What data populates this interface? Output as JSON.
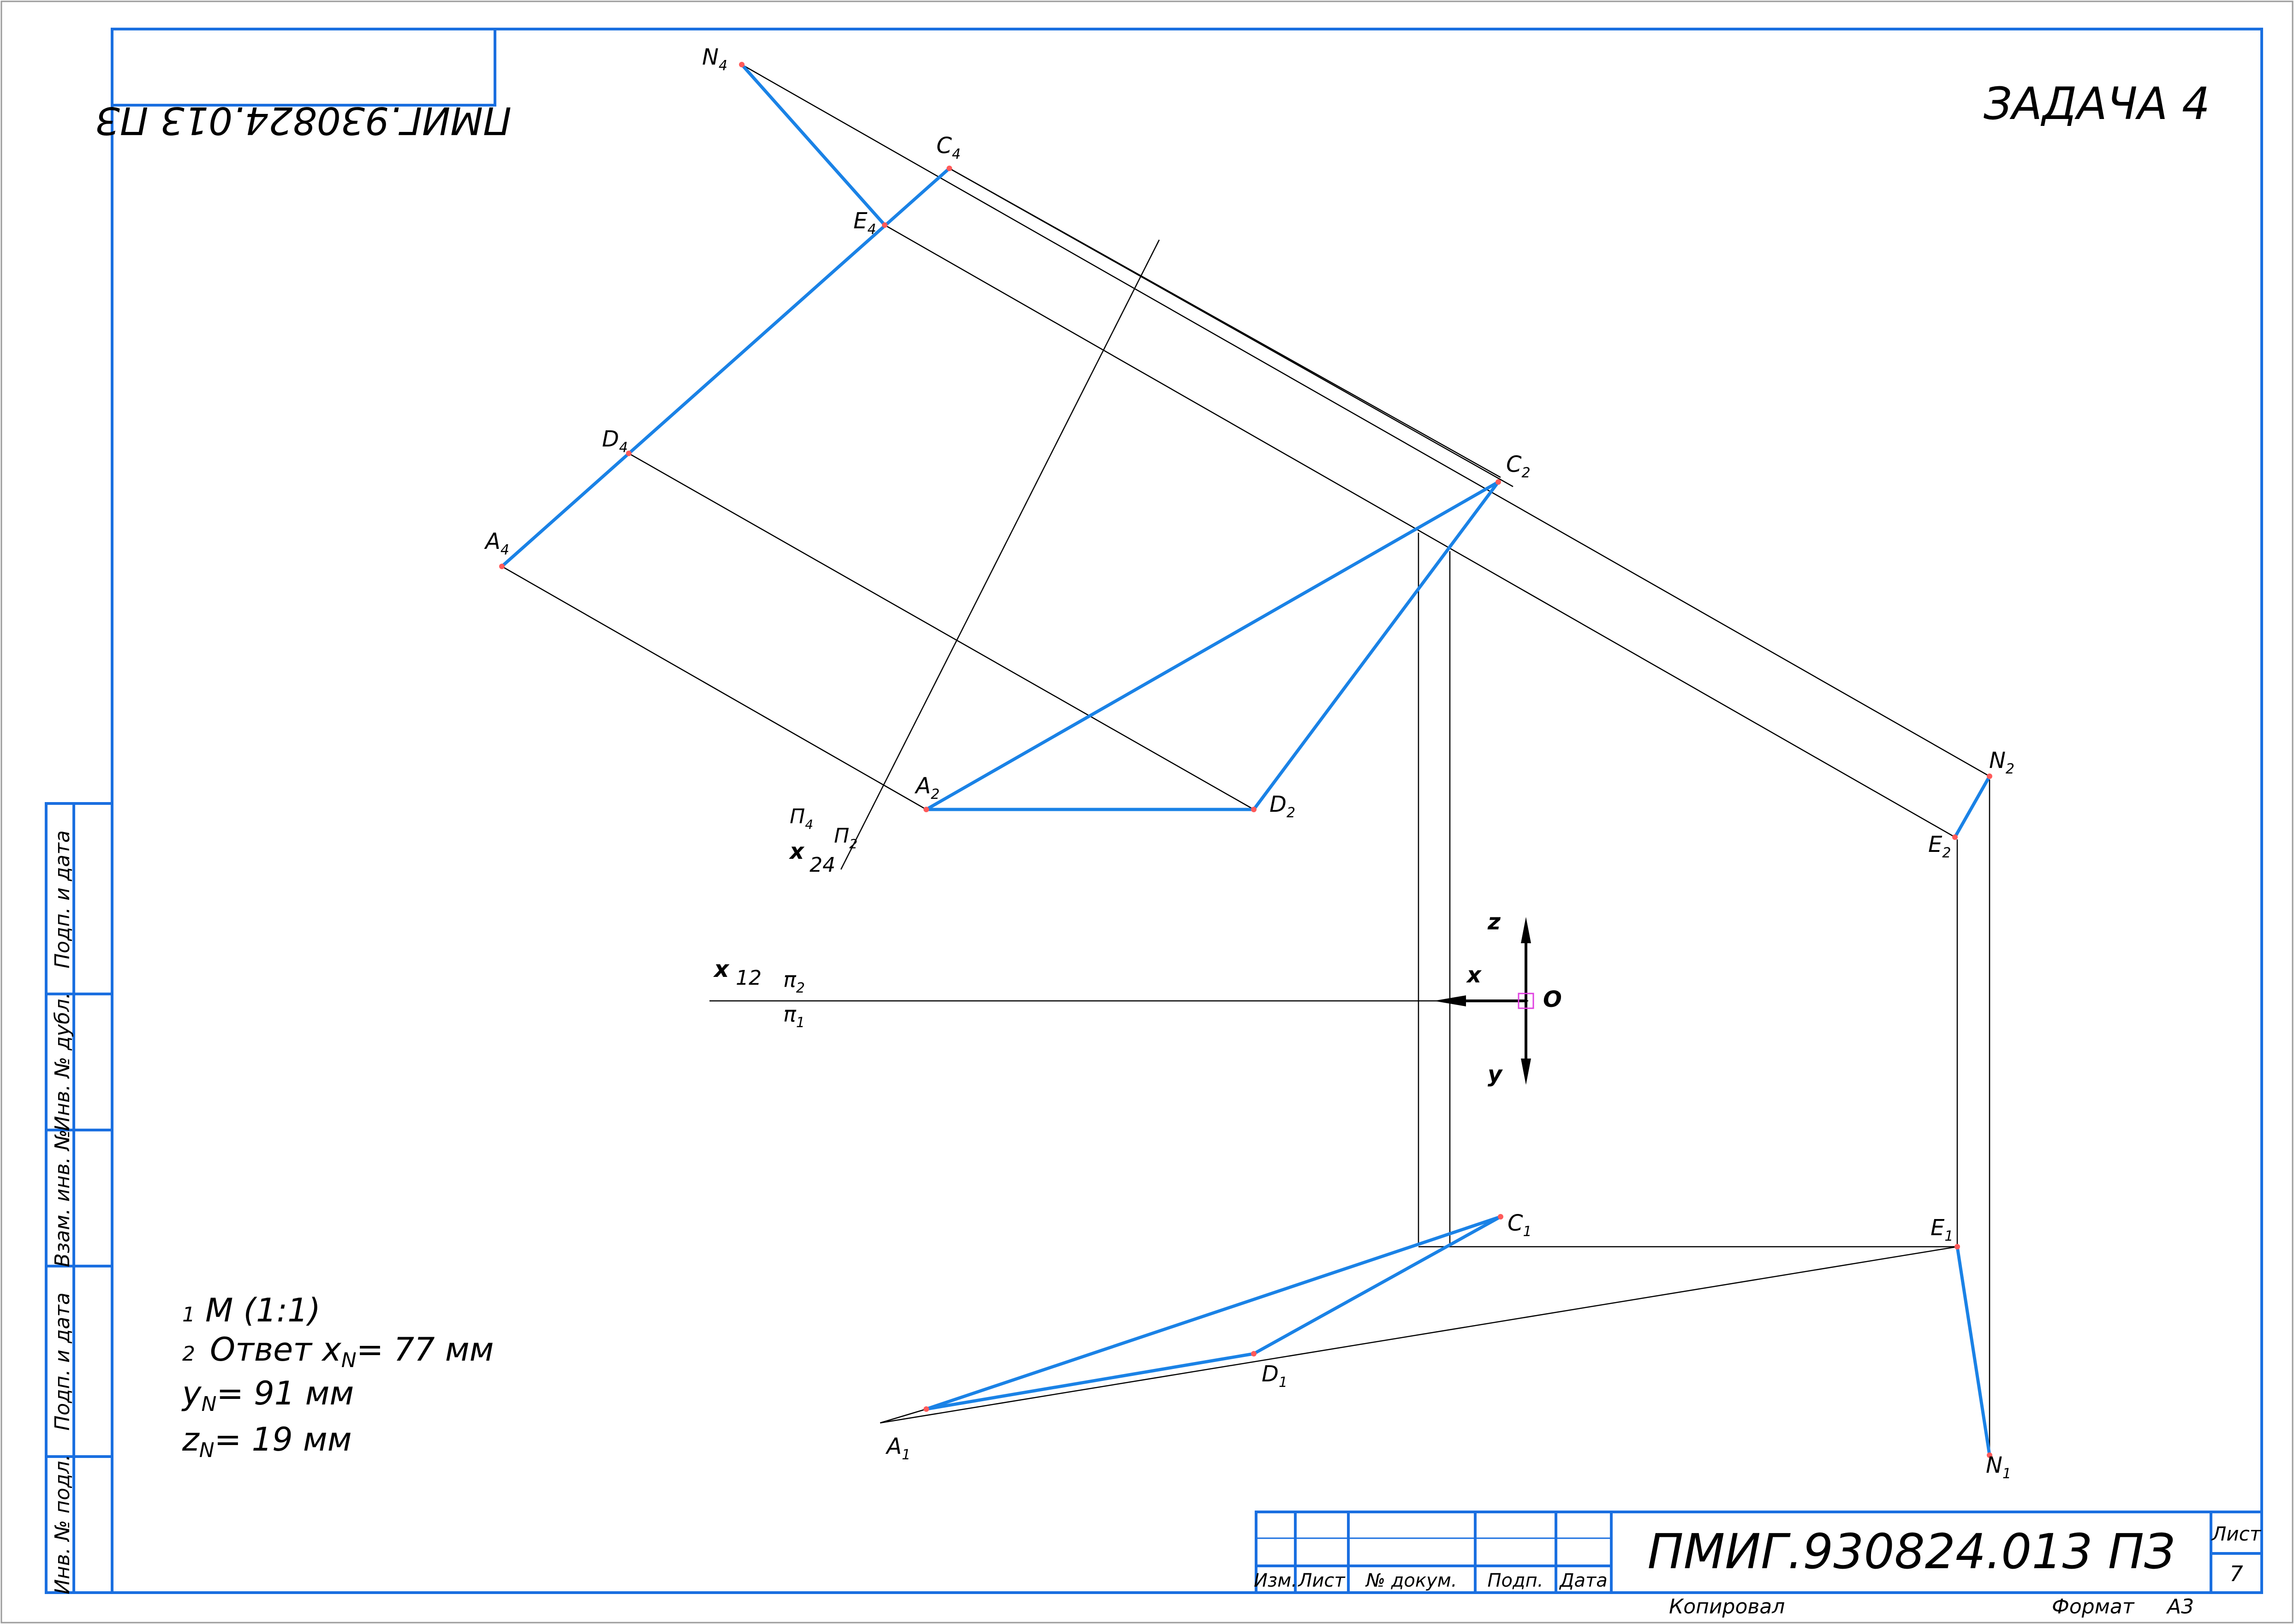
{
  "sheet": {
    "stamp_mirrored": "ПМИГ.930824.013 ПЗ",
    "task_title": "ЗАДАЧА 4",
    "document_code": "ПМИГ.930824.013 ПЗ",
    "sheet_label": "Лист",
    "sheet_number": "7",
    "copied_label": "Копировал",
    "format_label": "Формат",
    "format_value": "А3"
  },
  "side_stamp": {
    "cells": [
      "Подп. и дата",
      "Инв. № дубл.",
      "Взам. инв. №",
      "Подп. и дата",
      "Инв. № подл."
    ]
  },
  "title_block": {
    "columns": [
      "Изм.",
      "Лист",
      "№ докум.",
      "Подп.",
      "Дата"
    ]
  },
  "notes": {
    "line1_num": "1",
    "line1_text": "М (1:1)",
    "line2_num": "2",
    "line2_text": "Ответ",
    "xn_var": "x",
    "xn_sub": "N",
    "xn_value": "= 77 мм",
    "yn_var": "y",
    "yn_sub": "N",
    "yn_value": "= 91 мм",
    "zn_var": "z",
    "zn_sub": "N",
    "zn_value": "= 19 мм"
  },
  "axes": {
    "x12_letter": "x",
    "x12_index": "12",
    "pi2_letter": "π",
    "pi2_index": "2",
    "pi1_letter": "π",
    "pi1_index": "1",
    "x24_letter": "x",
    "x24_index": "24",
    "P4_letter": "П",
    "P4_index": "4",
    "P2_letter": "П",
    "P2_index": "2",
    "origin_label": "O",
    "z_label": "z",
    "x_label": "x",
    "y_label": "y"
  },
  "points": {
    "N4": {
      "letter": "N",
      "index": "4"
    },
    "C4": {
      "letter": "C",
      "index": "4"
    },
    "E4": {
      "letter": "E",
      "index": "4"
    },
    "D4": {
      "letter": "D",
      "index": "4"
    },
    "A4": {
      "letter": "A",
      "index": "4"
    },
    "C2": {
      "letter": "C",
      "index": "2"
    },
    "A2": {
      "letter": "A",
      "index": "2"
    },
    "D2": {
      "letter": "D",
      "index": "2"
    },
    "N2": {
      "letter": "N",
      "index": "2"
    },
    "E2": {
      "letter": "E",
      "index": "2"
    },
    "C1": {
      "letter": "C",
      "index": "1"
    },
    "E1": {
      "letter": "E",
      "index": "1"
    },
    "D1": {
      "letter": "D",
      "index": "1"
    },
    "A1": {
      "letter": "A",
      "index": "1"
    },
    "N1": {
      "letter": "N",
      "index": "1"
    }
  },
  "colors": {
    "frame": "#1a6fe0",
    "edges": "#1a82e6",
    "construction": "#000000",
    "point_marker": "#ff5a5a",
    "origin_marker": "#e040e0"
  }
}
